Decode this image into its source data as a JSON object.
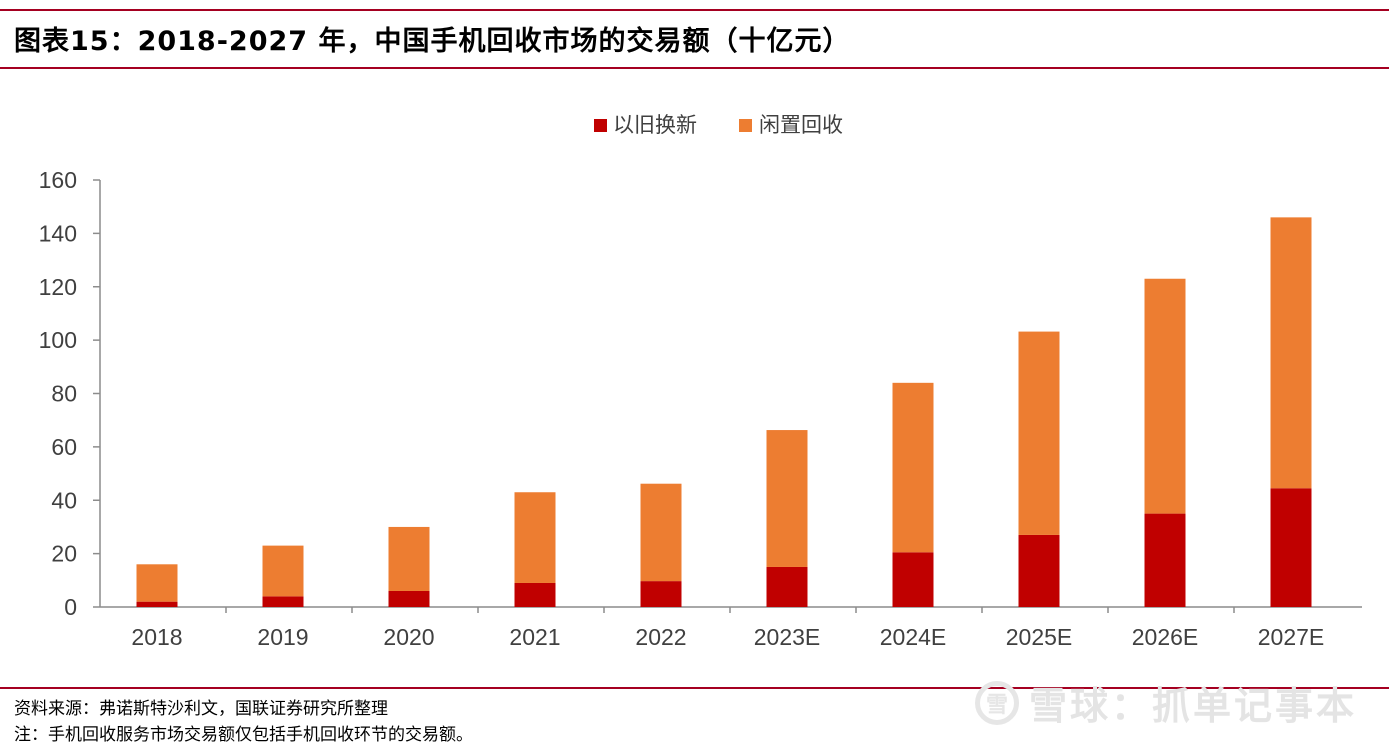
{
  "header": {
    "title": "图表15：2018-2027 年，中国手机回收市场的交易额（十亿元）"
  },
  "chart_data": {
    "type": "bar",
    "stacked": true,
    "categories": [
      "2018",
      "2019",
      "2020",
      "2021",
      "2022",
      "2023E",
      "2024E",
      "2025E",
      "2026E",
      "2027E"
    ],
    "series": [
      {
        "name": "以旧换新",
        "color": "#c00000",
        "values": [
          2,
          4,
          6,
          9,
          9.7,
          15,
          20.5,
          27,
          35,
          44.5
        ]
      },
      {
        "name": "闲置回收",
        "color": "#ed7d31",
        "values": [
          14,
          19,
          24,
          34,
          36.5,
          51.3,
          63.5,
          76.2,
          88,
          101.5
        ]
      }
    ],
    "ylim": [
      0,
      160
    ],
    "yticks": [
      0,
      20,
      40,
      60,
      80,
      100,
      120,
      140,
      160
    ],
    "xlabel": "",
    "ylabel": "",
    "grid": false,
    "legend_position": "top-center"
  },
  "footer": {
    "source": "资料来源：弗诺斯特沙利文，国联证券研究所整理",
    "note": "注：手机回收服务市场交易额仅包括手机回收环节的交易额。"
  },
  "watermark": {
    "logo": "雪",
    "text": "雪球：抓单记事本"
  }
}
